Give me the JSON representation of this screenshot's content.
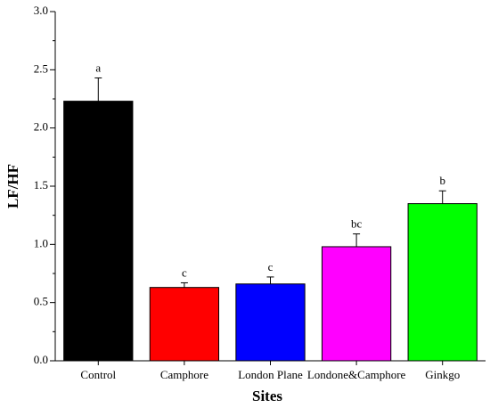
{
  "chart_data": {
    "type": "bar",
    "xlabel": "Sites",
    "ylabel": "LF/HF",
    "categories": [
      "Control",
      "Camphore",
      "London Plane",
      "Londone&Camphore",
      "Ginkgo"
    ],
    "values": [
      2.23,
      0.63,
      0.66,
      0.98,
      1.35
    ],
    "errors": [
      0.2,
      0.04,
      0.06,
      0.11,
      0.11
    ],
    "annotations": [
      "a",
      "c",
      "c",
      "bc",
      "b"
    ],
    "colors": [
      "#000000",
      "#ff0000",
      "#0000ff",
      "#ff00ff",
      "#00ff00"
    ],
    "ylim": [
      0,
      3
    ],
    "yticks": [
      {
        "value": 0,
        "label": "0.0"
      },
      0.5,
      {
        "value": 1,
        "label": "1.0"
      },
      1.5,
      {
        "value": 2,
        "label": "2.0"
      },
      2.5,
      {
        "value": 3,
        "label": "3.0"
      }
    ]
  }
}
